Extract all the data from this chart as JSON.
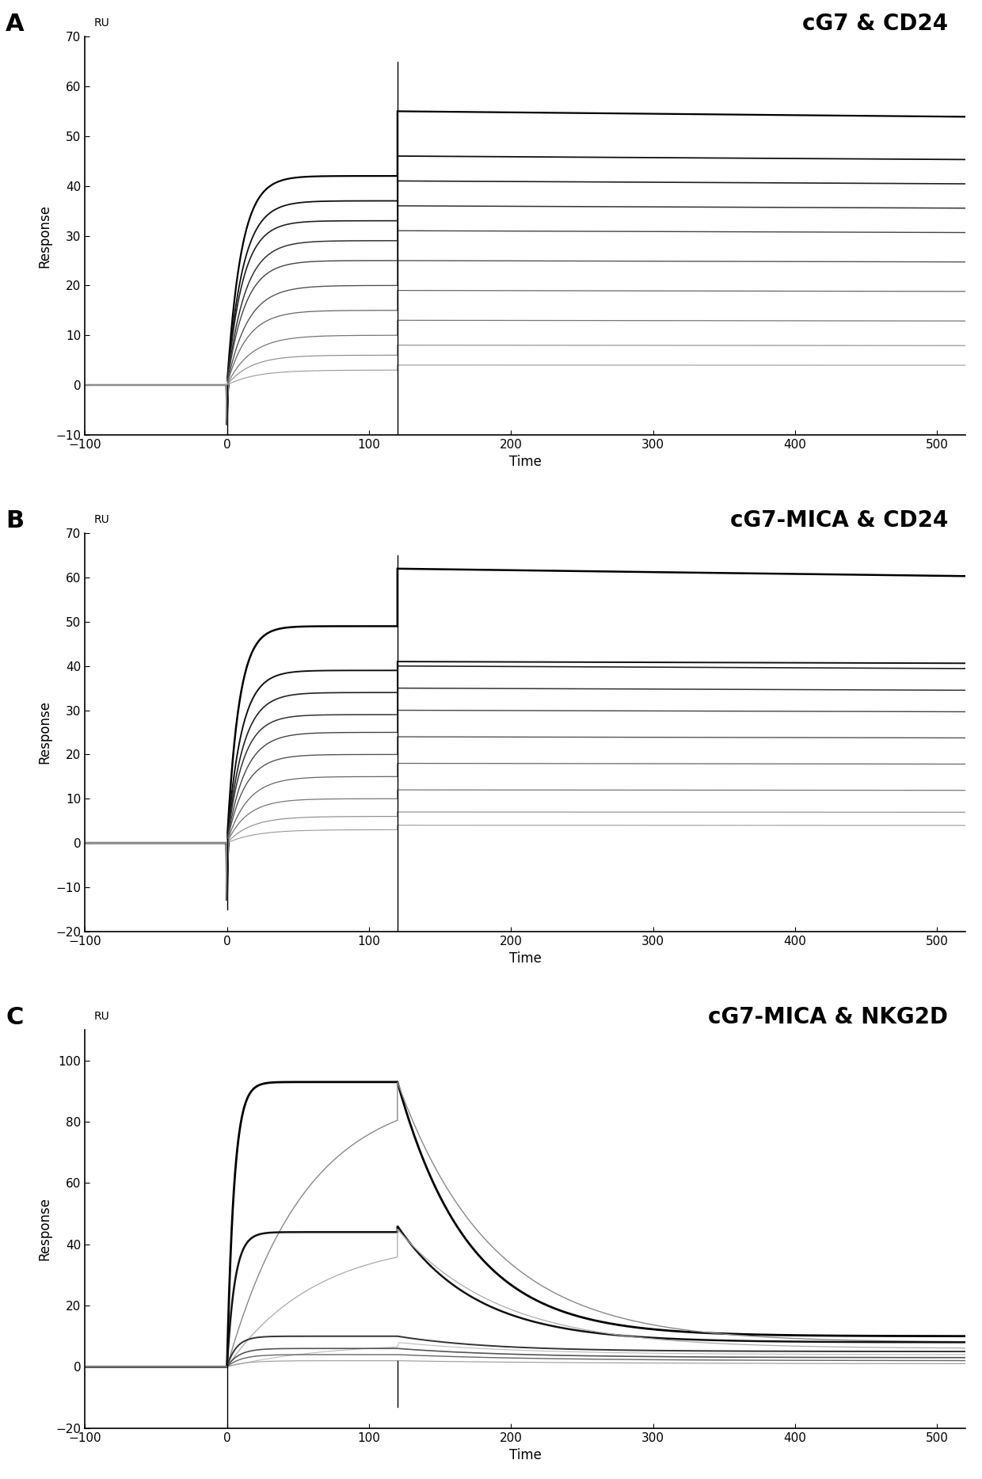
{
  "panel_A": {
    "title": "cG7 & CD24",
    "label": "A",
    "xlim": [
      -100,
      520
    ],
    "ylim": [
      -10,
      70
    ],
    "yticks": [
      -10,
      0,
      10,
      20,
      30,
      40,
      50,
      60,
      70
    ],
    "xticks": [
      -100,
      0,
      100,
      200,
      300,
      400,
      500
    ],
    "xlabel": "Time",
    "ylabel": "Response",
    "ru_label": "RU",
    "t_assoc_end": 120,
    "t_dissoc_end": 520,
    "t_base_start": -100,
    "t_base_end": 0,
    "spike_at_t0_y": -8,
    "spike_at_t120_y": 65,
    "curves": [
      {
        "plateau": 42,
        "peak": 55,
        "ka": 0.1,
        "kd": 0.00018,
        "color": "#000000",
        "lw": 1.6
      },
      {
        "plateau": 37,
        "peak": 46,
        "ka": 0.09,
        "kd": 0.00016,
        "color": "#111111",
        "lw": 1.3
      },
      {
        "plateau": 33,
        "peak": 41,
        "ka": 0.09,
        "kd": 0.00015,
        "color": "#222222",
        "lw": 1.2
      },
      {
        "plateau": 29,
        "peak": 36,
        "ka": 0.08,
        "kd": 0.00014,
        "color": "#333333",
        "lw": 1.1
      },
      {
        "plateau": 25,
        "peak": 31,
        "ka": 0.08,
        "kd": 0.00013,
        "color": "#444444",
        "lw": 1.0
      },
      {
        "plateau": 20,
        "peak": 25,
        "ka": 0.07,
        "kd": 0.00012,
        "color": "#555555",
        "lw": 1.0
      },
      {
        "plateau": 15,
        "peak": 19,
        "ka": 0.07,
        "kd": 0.00011,
        "color": "#666666",
        "lw": 0.9
      },
      {
        "plateau": 10,
        "peak": 13,
        "ka": 0.06,
        "kd": 0.0001,
        "color": "#777777",
        "lw": 0.9
      },
      {
        "plateau": 6,
        "peak": 8,
        "ka": 0.06,
        "kd": 9e-05,
        "color": "#888888",
        "lw": 0.8
      },
      {
        "plateau": 3,
        "peak": 4,
        "ka": 0.05,
        "kd": 8e-05,
        "color": "#999999",
        "lw": 0.8
      }
    ]
  },
  "panel_B": {
    "title": "cG7-MICA & CD24",
    "label": "B",
    "xlim": [
      -100,
      520
    ],
    "ylim": [
      -20,
      70
    ],
    "yticks": [
      -20,
      -10,
      0,
      10,
      20,
      30,
      40,
      50,
      60,
      70
    ],
    "xticks": [
      -100,
      0,
      100,
      200,
      300,
      400,
      500
    ],
    "xlabel": "Time",
    "ylabel": "Response",
    "ru_label": "RU",
    "t_assoc_end": 120,
    "t_dissoc_end": 520,
    "t_base_start": -100,
    "t_base_end": 0,
    "spike_at_t0_y": -13,
    "spike_at_t120_y": 65,
    "curves": [
      {
        "plateau": 49,
        "peak": 62,
        "ka": 0.12,
        "kd": 0.00025,
        "color": "#000000",
        "lw": 1.8
      },
      {
        "plateau": 39,
        "peak": 41,
        "ka": 0.1,
        "kd": 0.0002,
        "color": "#111111",
        "lw": 1.4
      },
      {
        "plateau": 34,
        "peak": 40,
        "ka": 0.09,
        "kd": 0.00018,
        "color": "#222222",
        "lw": 1.2
      },
      {
        "plateau": 29,
        "peak": 35,
        "ka": 0.09,
        "kd": 0.00016,
        "color": "#333333",
        "lw": 1.1
      },
      {
        "plateau": 25,
        "peak": 30,
        "ka": 0.08,
        "kd": 0.00014,
        "color": "#444444",
        "lw": 1.0
      },
      {
        "plateau": 20,
        "peak": 24,
        "ka": 0.08,
        "kd": 0.00013,
        "color": "#555555",
        "lw": 1.0
      },
      {
        "plateau": 15,
        "peak": 18,
        "ka": 0.07,
        "kd": 0.00012,
        "color": "#666666",
        "lw": 0.9
      },
      {
        "plateau": 10,
        "peak": 12,
        "ka": 0.07,
        "kd": 0.00011,
        "color": "#777777",
        "lw": 0.9
      },
      {
        "plateau": 6,
        "peak": 7,
        "ka": 0.06,
        "kd": 0.0001,
        "color": "#888888",
        "lw": 0.8
      },
      {
        "plateau": 3,
        "peak": 4,
        "ka": 0.05,
        "kd": 9e-05,
        "color": "#999999",
        "lw": 0.8
      }
    ]
  },
  "panel_C": {
    "title": "cG7-MICA & NKG2D",
    "label": "C",
    "xlim": [
      -100,
      520
    ],
    "ylim": [
      -20,
      110
    ],
    "yticks": [
      -20,
      0,
      20,
      40,
      60,
      80,
      100
    ],
    "xticks": [
      -100,
      0,
      100,
      200,
      300,
      400,
      500
    ],
    "xlabel": "Time",
    "ylabel": "Response",
    "ru_label": "RU",
    "t_assoc_end": 120,
    "t_dissoc_end": 520,
    "t_base_start": -100,
    "t_base_end": 0,
    "spike_at_t0_y": -5,
    "spike_at_t120_y": -13,
    "curves": [
      {
        "plateau": 93,
        "peak": 93,
        "ka": 0.2,
        "kd": 0.02,
        "color": "#000000",
        "lw": 2.0,
        "slow_assoc": false,
        "final": 10
      },
      {
        "plateau": 91,
        "peak": 93,
        "ka": 0.018,
        "kd": 0.015,
        "color": "#888888",
        "lw": 1.0,
        "slow_assoc": true,
        "final": 8
      },
      {
        "plateau": 44,
        "peak": 46,
        "ka": 0.18,
        "kd": 0.018,
        "color": "#111111",
        "lw": 1.8,
        "slow_assoc": false,
        "final": 8
      },
      {
        "plateau": 42,
        "peak": 45,
        "ka": 0.016,
        "kd": 0.014,
        "color": "#aaaaaa",
        "lw": 0.9,
        "slow_assoc": true,
        "final": 6
      },
      {
        "plateau": 10,
        "peak": 10,
        "ka": 0.15,
        "kd": 0.015,
        "color": "#333333",
        "lw": 1.4,
        "slow_assoc": false,
        "final": 5
      },
      {
        "plateau": 8,
        "peak": 8,
        "ka": 0.014,
        "kd": 0.012,
        "color": "#bbbbbb",
        "lw": 0.8,
        "slow_assoc": true,
        "final": 4
      },
      {
        "plateau": 6,
        "peak": 6,
        "ka": 0.12,
        "kd": 0.012,
        "color": "#555555",
        "lw": 1.2,
        "slow_assoc": false,
        "final": 3
      },
      {
        "plateau": 4,
        "peak": 4,
        "ka": 0.1,
        "kd": 0.01,
        "color": "#666666",
        "lw": 1.0,
        "slow_assoc": false,
        "final": 2
      },
      {
        "plateau": 2,
        "peak": 2,
        "ka": 0.08,
        "kd": 0.008,
        "color": "#999999",
        "lw": 0.8,
        "slow_assoc": false,
        "final": 1
      }
    ]
  },
  "background_color": "#ffffff",
  "figure_label_fontsize": 22,
  "title_fontsize": 20,
  "axis_label_fontsize": 12,
  "tick_fontsize": 11,
  "ru_fontsize": 10
}
